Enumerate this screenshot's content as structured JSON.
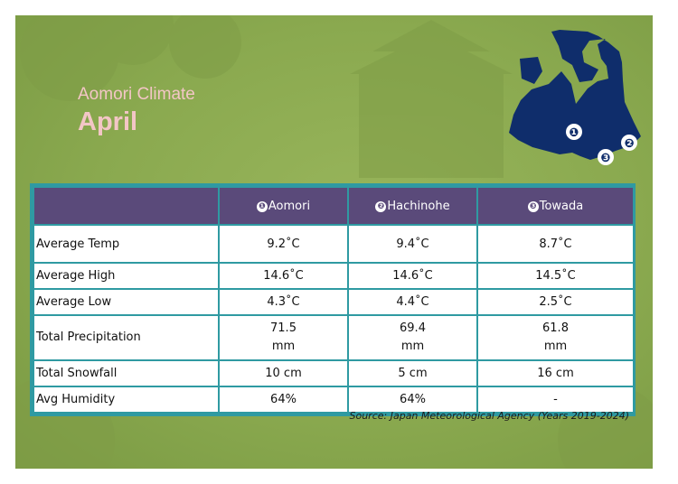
{
  "header": {
    "subtitle": "Aomori Climate",
    "title": "April"
  },
  "map": {
    "markers": [
      "❶",
      "❷",
      "❸"
    ],
    "fill_color": "#0f2d6b"
  },
  "table": {
    "columns": [
      {
        "marker": "❶",
        "name": "Aomori"
      },
      {
        "marker": "❷",
        "name": "Hachinohe"
      },
      {
        "marker": "❸",
        "name": "Towada"
      }
    ],
    "rows": [
      {
        "label": "Average Temp",
        "values": [
          "9.2˚C",
          "9.4˚C",
          "8.7˚C"
        ]
      },
      {
        "label": "Average High",
        "values": [
          "14.6˚C",
          "14.6˚C",
          "14.5˚C"
        ]
      },
      {
        "label": "Average Low",
        "values": [
          "4.3˚C",
          "4.4˚C",
          "2.5˚C"
        ]
      },
      {
        "label": "Total Precipitation",
        "values": [
          [
            "71.5",
            "mm"
          ],
          [
            "69.4",
            "mm"
          ],
          [
            "61.8",
            "mm"
          ]
        ]
      },
      {
        "label": "Total Snowfall",
        "values": [
          "10 cm",
          "5 cm",
          "16 cm"
        ]
      },
      {
        "label": "Avg Humidity",
        "values": [
          "64%",
          "64%",
          "-"
        ]
      }
    ]
  },
  "source": "Source: Japan Meteorological Agency (Years 2019-2024)",
  "colors": {
    "background": "#8aa94f",
    "header_row": "#5a4a7a",
    "border": "#2f9aa2",
    "title_text": "#f3c6c6"
  }
}
